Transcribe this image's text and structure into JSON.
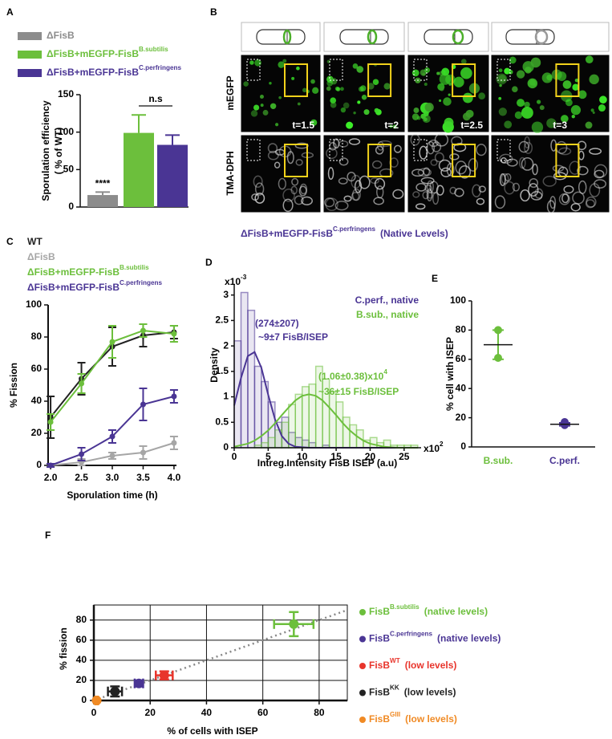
{
  "panel_labels": [
    "A",
    "B",
    "C",
    "D",
    "E",
    "F"
  ],
  "panel_b": {
    "rows": [
      "mEGFP",
      "TMA-DPH"
    ],
    "times": [
      "t=1.5",
      "t=2",
      "t=2.5",
      "t=3"
    ],
    "caption": {
      "name": "ΔFisB+mEGFP-FisB",
      "sup": "C.perfringens",
      "suffix": "(Native Levels)"
    }
  },
  "chart_data": [
    {
      "type": "bar",
      "legend": [
        {
          "name": "ΔFisB"
        },
        {
          "name": "ΔFisB+mEGFP-FisB",
          "sup": "B.subtilis"
        },
        {
          "name": "ΔFisB+mEGFP-FisB",
          "sup": "C.perfringens"
        }
      ],
      "colors": [
        "#8c8c8c",
        "#6cbf3c",
        "#4a3594"
      ],
      "categories": [
        null,
        null,
        null
      ],
      "values": [
        16,
        99,
        83
      ],
      "errors": [
        4,
        24,
        13
      ],
      "ylim": [
        0,
        150
      ],
      "yticks": [
        0,
        50,
        100,
        150
      ],
      "ylabel": [
        "Sporulation efficiency",
        "( % of WT)"
      ],
      "annotations": [
        "****",
        "n.s"
      ]
    },
    {
      "type": "line",
      "x": [
        2,
        2.5,
        3,
        3.5,
        4
      ],
      "xlim": [
        1.96,
        4.04
      ],
      "xticks": [
        {
          "value": 2,
          "label": "2.0"
        },
        {
          "value": 2.5,
          "label": "2.5"
        },
        {
          "value": 3,
          "label": "3.0"
        },
        {
          "value": 3.5,
          "label": "3.5"
        },
        {
          "value": 4,
          "label": "4.0"
        }
      ],
      "ylim": [
        0,
        100
      ],
      "yticks": [
        0,
        20,
        40,
        60,
        80,
        100
      ],
      "series": [
        {
          "name": "WT",
          "color": "#222222",
          "values": [
            30,
            54,
            74,
            81,
            83
          ],
          "errors": [
            13,
            10,
            12,
            7,
            4
          ]
        },
        {
          "name": "ΔFisB",
          "color": "#a6a6a6",
          "values": [
            0,
            2,
            6,
            8,
            14
          ],
          "errors": [
            1,
            2,
            2,
            4,
            4
          ]
        },
        {
          "name": "ΔFisB+mEGFP-FisB",
          "sup": "B.subtilis",
          "color": "#6cbf3c",
          "values": [
            27,
            51,
            77,
            84,
            82
          ],
          "errors": [
            5,
            6,
            10,
            4,
            5
          ]
        },
        {
          "name": "ΔFisB+mEGFP-FisB",
          "sup": "C.perfringens",
          "color": "#4a3594",
          "values": [
            0,
            7,
            18,
            38,
            43
          ],
          "errors": [
            1,
            4,
            4,
            10,
            4
          ]
        }
      ],
      "xlabel": "Sporulation time (h)",
      "ylabel": "% Fission"
    },
    {
      "type": "histogram",
      "bins": [
        0,
        1,
        2,
        3,
        4,
        5,
        6,
        7,
        8,
        9,
        10,
        11,
        12,
        13,
        14,
        15,
        16,
        17,
        18,
        19,
        20,
        21,
        22,
        23,
        24,
        25,
        26,
        27
      ],
      "curve_x": [
        0,
        1,
        2,
        3,
        4,
        5,
        6,
        7,
        8,
        9,
        10,
        11,
        12,
        13,
        14,
        15,
        16,
        17,
        18,
        19,
        20,
        21,
        22,
        23,
        24,
        25,
        26,
        27
      ],
      "series": [
        {
          "name": "C.perf., native",
          "color": "#4a3594",
          "values": [
            2.1,
            3.05,
            2.7,
            1.6,
            1.3,
            0.9,
            0.5,
            0.6,
            0.3,
            0.2,
            0.15,
            0.1,
            0,
            0.05,
            0,
            0,
            0,
            0,
            0,
            0,
            0,
            0,
            0,
            0,
            0,
            0,
            0
          ],
          "curve": [
            0.83,
            1.37,
            1.8,
            1.88,
            1.57,
            1.04,
            0.56,
            0.23,
            0.08,
            0.02,
            0.01,
            0,
            0,
            0,
            0,
            0,
            0,
            0,
            0,
            0,
            0,
            0,
            0,
            0,
            0,
            0,
            0,
            0
          ]
        },
        {
          "name": "B.sub., native",
          "color": "#6cbf3c",
          "values": [
            0,
            0,
            0,
            0.05,
            0.1,
            0.2,
            0.35,
            0.5,
            0.85,
            1.05,
            1.2,
            1.25,
            1.6,
            1.35,
            1.1,
            0.9,
            0.6,
            0.45,
            0.35,
            0.15,
            0.2,
            0.1,
            0.15,
            0.05,
            0.05,
            0.05,
            0.05
          ],
          "curve": [
            0.02,
            0.05,
            0.08,
            0.14,
            0.23,
            0.34,
            0.48,
            0.64,
            0.79,
            0.93,
            1.02,
            1.05,
            1.02,
            0.93,
            0.79,
            0.64,
            0.48,
            0.34,
            0.23,
            0.14,
            0.08,
            0.05,
            0.02,
            0.01,
            0,
            0,
            0,
            0
          ]
        }
      ],
      "xlim": [
        0,
        27.5
      ],
      "xticks": [
        0,
        5,
        10,
        15,
        20,
        25
      ],
      "ylim": [
        0,
        3.2
      ],
      "yticks": [
        0,
        0.5,
        1,
        1.5,
        2,
        2.5,
        3
      ],
      "y_multiplier": {
        "name": "x10",
        "sup": "-3"
      },
      "x_multiplier": {
        "name": "x10",
        "sup": "2"
      },
      "annotations": [
        {
          "name": "(274±207)"
        },
        {
          "name": "~9±7 FisB/ISEP"
        },
        {
          "name": "(1.06±0.38)x10",
          "sup": "4"
        },
        {
          "name": "~36±15 FisB/ISEP"
        }
      ],
      "xlabel": "Intreg.Intensity FisB ISEP (a.u)",
      "ylabel": "Density"
    },
    {
      "type": "dot",
      "categories": [
        "B.sub.",
        "C.perf."
      ],
      "colors": [
        "#6cbf3c",
        "#4a3594"
      ],
      "points": [
        [
          80,
          61
        ],
        [
          17,
          15
        ]
      ],
      "means": [
        70,
        15.5
      ],
      "errors": [
        10,
        1
      ],
      "ylim": [
        0,
        100
      ],
      "yticks": [
        0,
        20,
        40,
        60,
        80,
        100
      ],
      "ylabel": "% cell with ISEP"
    },
    {
      "type": "scatter",
      "grid": true,
      "diagonal": true,
      "xlim": [
        0,
        90
      ],
      "xticks": [
        0,
        20,
        40,
        60,
        80
      ],
      "ylim": [
        0,
        95
      ],
      "yticks": [
        0,
        20,
        40,
        60,
        80
      ],
      "series": [
        {
          "name": "FisB",
          "sup": "B.subtilis",
          "suffix": "(native levels)",
          "color": "#6cbf3c",
          "x": 71,
          "y": 76,
          "xerr": 7,
          "yerr": 12
        },
        {
          "name": "FisB",
          "sup": "C.perfringens",
          "suffix": "(native levels)",
          "color": "#4a3594",
          "x": 16,
          "y": 17,
          "xerr": 1.5,
          "yerr": 3
        },
        {
          "name": "FisB",
          "sup": "WT",
          "suffix": "(low levels)",
          "color": "#e8352c",
          "x": 25,
          "y": 25,
          "xerr": 3,
          "yerr": 4
        },
        {
          "name": "FisB",
          "sup": "KK",
          "suffix": "(low levels)",
          "color": "#222222",
          "x": 7.5,
          "y": 9,
          "xerr": 2.5,
          "yerr": 5
        },
        {
          "name": "FisB",
          "sup": "GIII",
          "suffix": "(low levels)",
          "color": "#f08a24",
          "x": 1,
          "y": 0,
          "xerr": 0.5,
          "yerr": 0.5
        }
      ],
      "xlabel": "% of cells with ISEP",
      "ylabel": "% fission"
    }
  ]
}
